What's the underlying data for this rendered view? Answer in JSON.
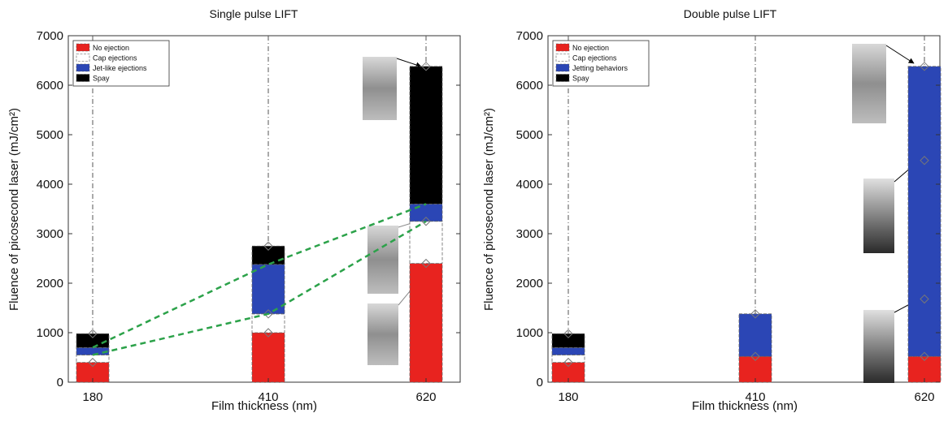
{
  "chart_data": [
    {
      "type": "bar",
      "subtype": "stacked-range",
      "title": "Single pulse LIFT",
      "xlabel": "Film thickness (nm)",
      "ylabel": "Fluence of picosecond laser (mJ/cm²)",
      "ylim": [
        0,
        7000
      ],
      "yticks": [
        "0",
        "1000",
        "2000",
        "3000",
        "4000",
        "5000",
        "6000",
        "7000"
      ],
      "categories": [
        "180",
        "410",
        "620"
      ],
      "grid": false,
      "legend_position": "top-left",
      "series": [
        {
          "name": "No ejection",
          "color": "#e8231f",
          "ranges": [
            [
              0,
              400
            ],
            [
              0,
              1000
            ],
            [
              0,
              2400
            ]
          ]
        },
        {
          "name": "Cap ejections",
          "color": "#ffffff",
          "ranges": [
            [
              400,
              550
            ],
            [
              1000,
              1380
            ],
            [
              2400,
              3250
            ]
          ]
        },
        {
          "name": "Jet-like ejections",
          "color": "#2b46b5",
          "ranges": [
            [
              550,
              700
            ],
            [
              1380,
              2380
            ],
            [
              3250,
              3600
            ]
          ]
        },
        {
          "name": "Spay",
          "color": "#000000",
          "ranges": [
            [
              700,
              980
            ],
            [
              2380,
              2750
            ],
            [
              3600,
              6380
            ]
          ]
        }
      ],
      "marker_points": [
        {
          "category": "180",
          "values": [
            400,
            980
          ]
        },
        {
          "category": "410",
          "values": [
            1000,
            1380,
            2750
          ]
        },
        {
          "category": "620",
          "values": [
            2400,
            3250,
            6380
          ]
        }
      ],
      "trend_lines": [
        {
          "color": "#2ca24a",
          "style": "dashed",
          "points": [
            [
              "180",
              700
            ],
            [
              "410",
              2380
            ],
            [
              "620",
              3600
            ]
          ]
        },
        {
          "color": "#2ca24a",
          "style": "dashed",
          "points": [
            [
              "180",
              550
            ],
            [
              "410",
              1380
            ],
            [
              "620",
              3250
            ]
          ]
        }
      ]
    },
    {
      "type": "bar",
      "subtype": "stacked-range",
      "title": "Double pulse LIFT",
      "xlabel": "Film thickness (nm)",
      "ylabel": "Fluence of picosecond laser (mJ/cm²)",
      "ylim": [
        0,
        7000
      ],
      "yticks": [
        "0",
        "1000",
        "2000",
        "3000",
        "4000",
        "5000",
        "6000",
        "7000"
      ],
      "categories": [
        "180",
        "410",
        "620"
      ],
      "grid": false,
      "legend_position": "top-left",
      "series": [
        {
          "name": "No ejection",
          "color": "#e8231f",
          "ranges": [
            [
              0,
              400
            ],
            [
              0,
              520
            ],
            [
              0,
              520
            ]
          ]
        },
        {
          "name": "Cap ejections",
          "color": "#ffffff",
          "ranges": [
            [
              400,
              550
            ],
            null,
            null
          ]
        },
        {
          "name": "Jetting behaviors",
          "color": "#2b46b5",
          "ranges": [
            [
              550,
              700
            ],
            [
              520,
              1380
            ],
            [
              520,
              6380
            ]
          ]
        },
        {
          "name": "Spay",
          "color": "#000000",
          "ranges": [
            [
              700,
              980
            ],
            null,
            null
          ]
        }
      ],
      "marker_points": [
        {
          "category": "180",
          "values": [
            400,
            980
          ]
        },
        {
          "category": "410",
          "values": [
            520,
            1380
          ]
        },
        {
          "category": "620",
          "values": [
            520,
            1680,
            4480,
            6380
          ]
        }
      ]
    }
  ]
}
